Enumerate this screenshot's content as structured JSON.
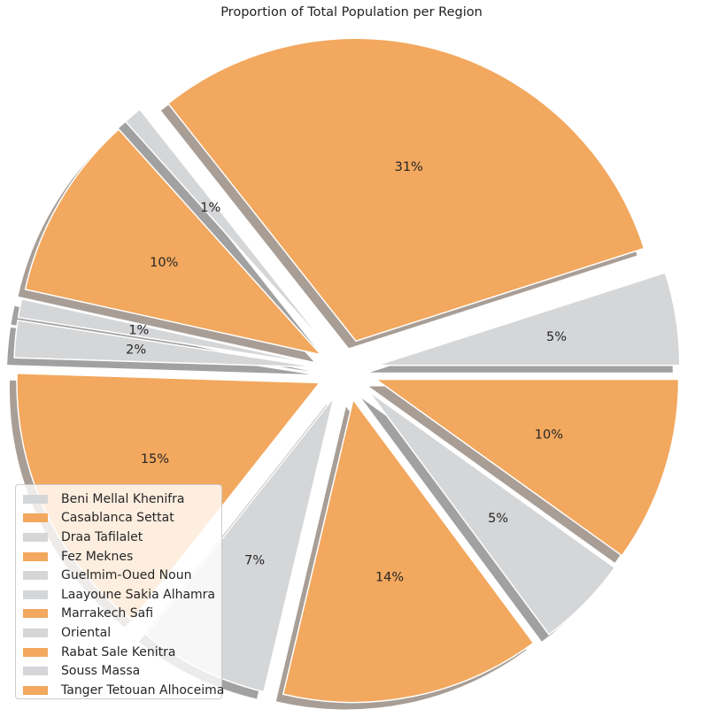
{
  "chart_data": {
    "type": "pie",
    "title": "Proportion of Total Population per Region",
    "start_angle_deg": 0,
    "direction": "counterclockwise",
    "shadow": true,
    "legend_placement": "lower-left",
    "colors": {
      "orange": "#F2A85E",
      "gray": "#D5D6D8"
    },
    "slices": [
      {
        "label": "Beni Mellal Khenifra",
        "value": 5,
        "pct_label": "5%",
        "color": "#D5D6D8"
      },
      {
        "label": "Casablanca Settat",
        "value": 31,
        "pct_label": "31%",
        "color": "#F2A85E"
      },
      {
        "label": "Draa Tafilalet",
        "value": 1,
        "pct_label": "1%",
        "color": "#D5D6D8"
      },
      {
        "label": "Fez Meknes",
        "value": 10,
        "pct_label": "10%",
        "color": "#F2A85E"
      },
      {
        "label": "Guelmim-Oued Noun",
        "value": 1,
        "pct_label": "1%",
        "color": "#D5D6D8"
      },
      {
        "label": "Laayoune Sakia Alhamra",
        "value": 2,
        "pct_label": "2%",
        "color": "#D5D6D8"
      },
      {
        "label": "Marrakech Safi",
        "value": 15,
        "pct_label": "15%",
        "color": "#F2A85E"
      },
      {
        "label": "Oriental",
        "value": 7,
        "pct_label": "7%",
        "color": "#D5D6D8"
      },
      {
        "label": "Rabat Sale Kenitra",
        "value": 14,
        "pct_label": "14%",
        "color": "#F2A85E"
      },
      {
        "label": "Souss Massa",
        "value": 5,
        "pct_label": "5%",
        "color": "#D5D6D8"
      },
      {
        "label": "Tanger Tetouan Alhoceima",
        "value": 10,
        "pct_label": "10%",
        "color": "#F2A85E"
      }
    ]
  }
}
